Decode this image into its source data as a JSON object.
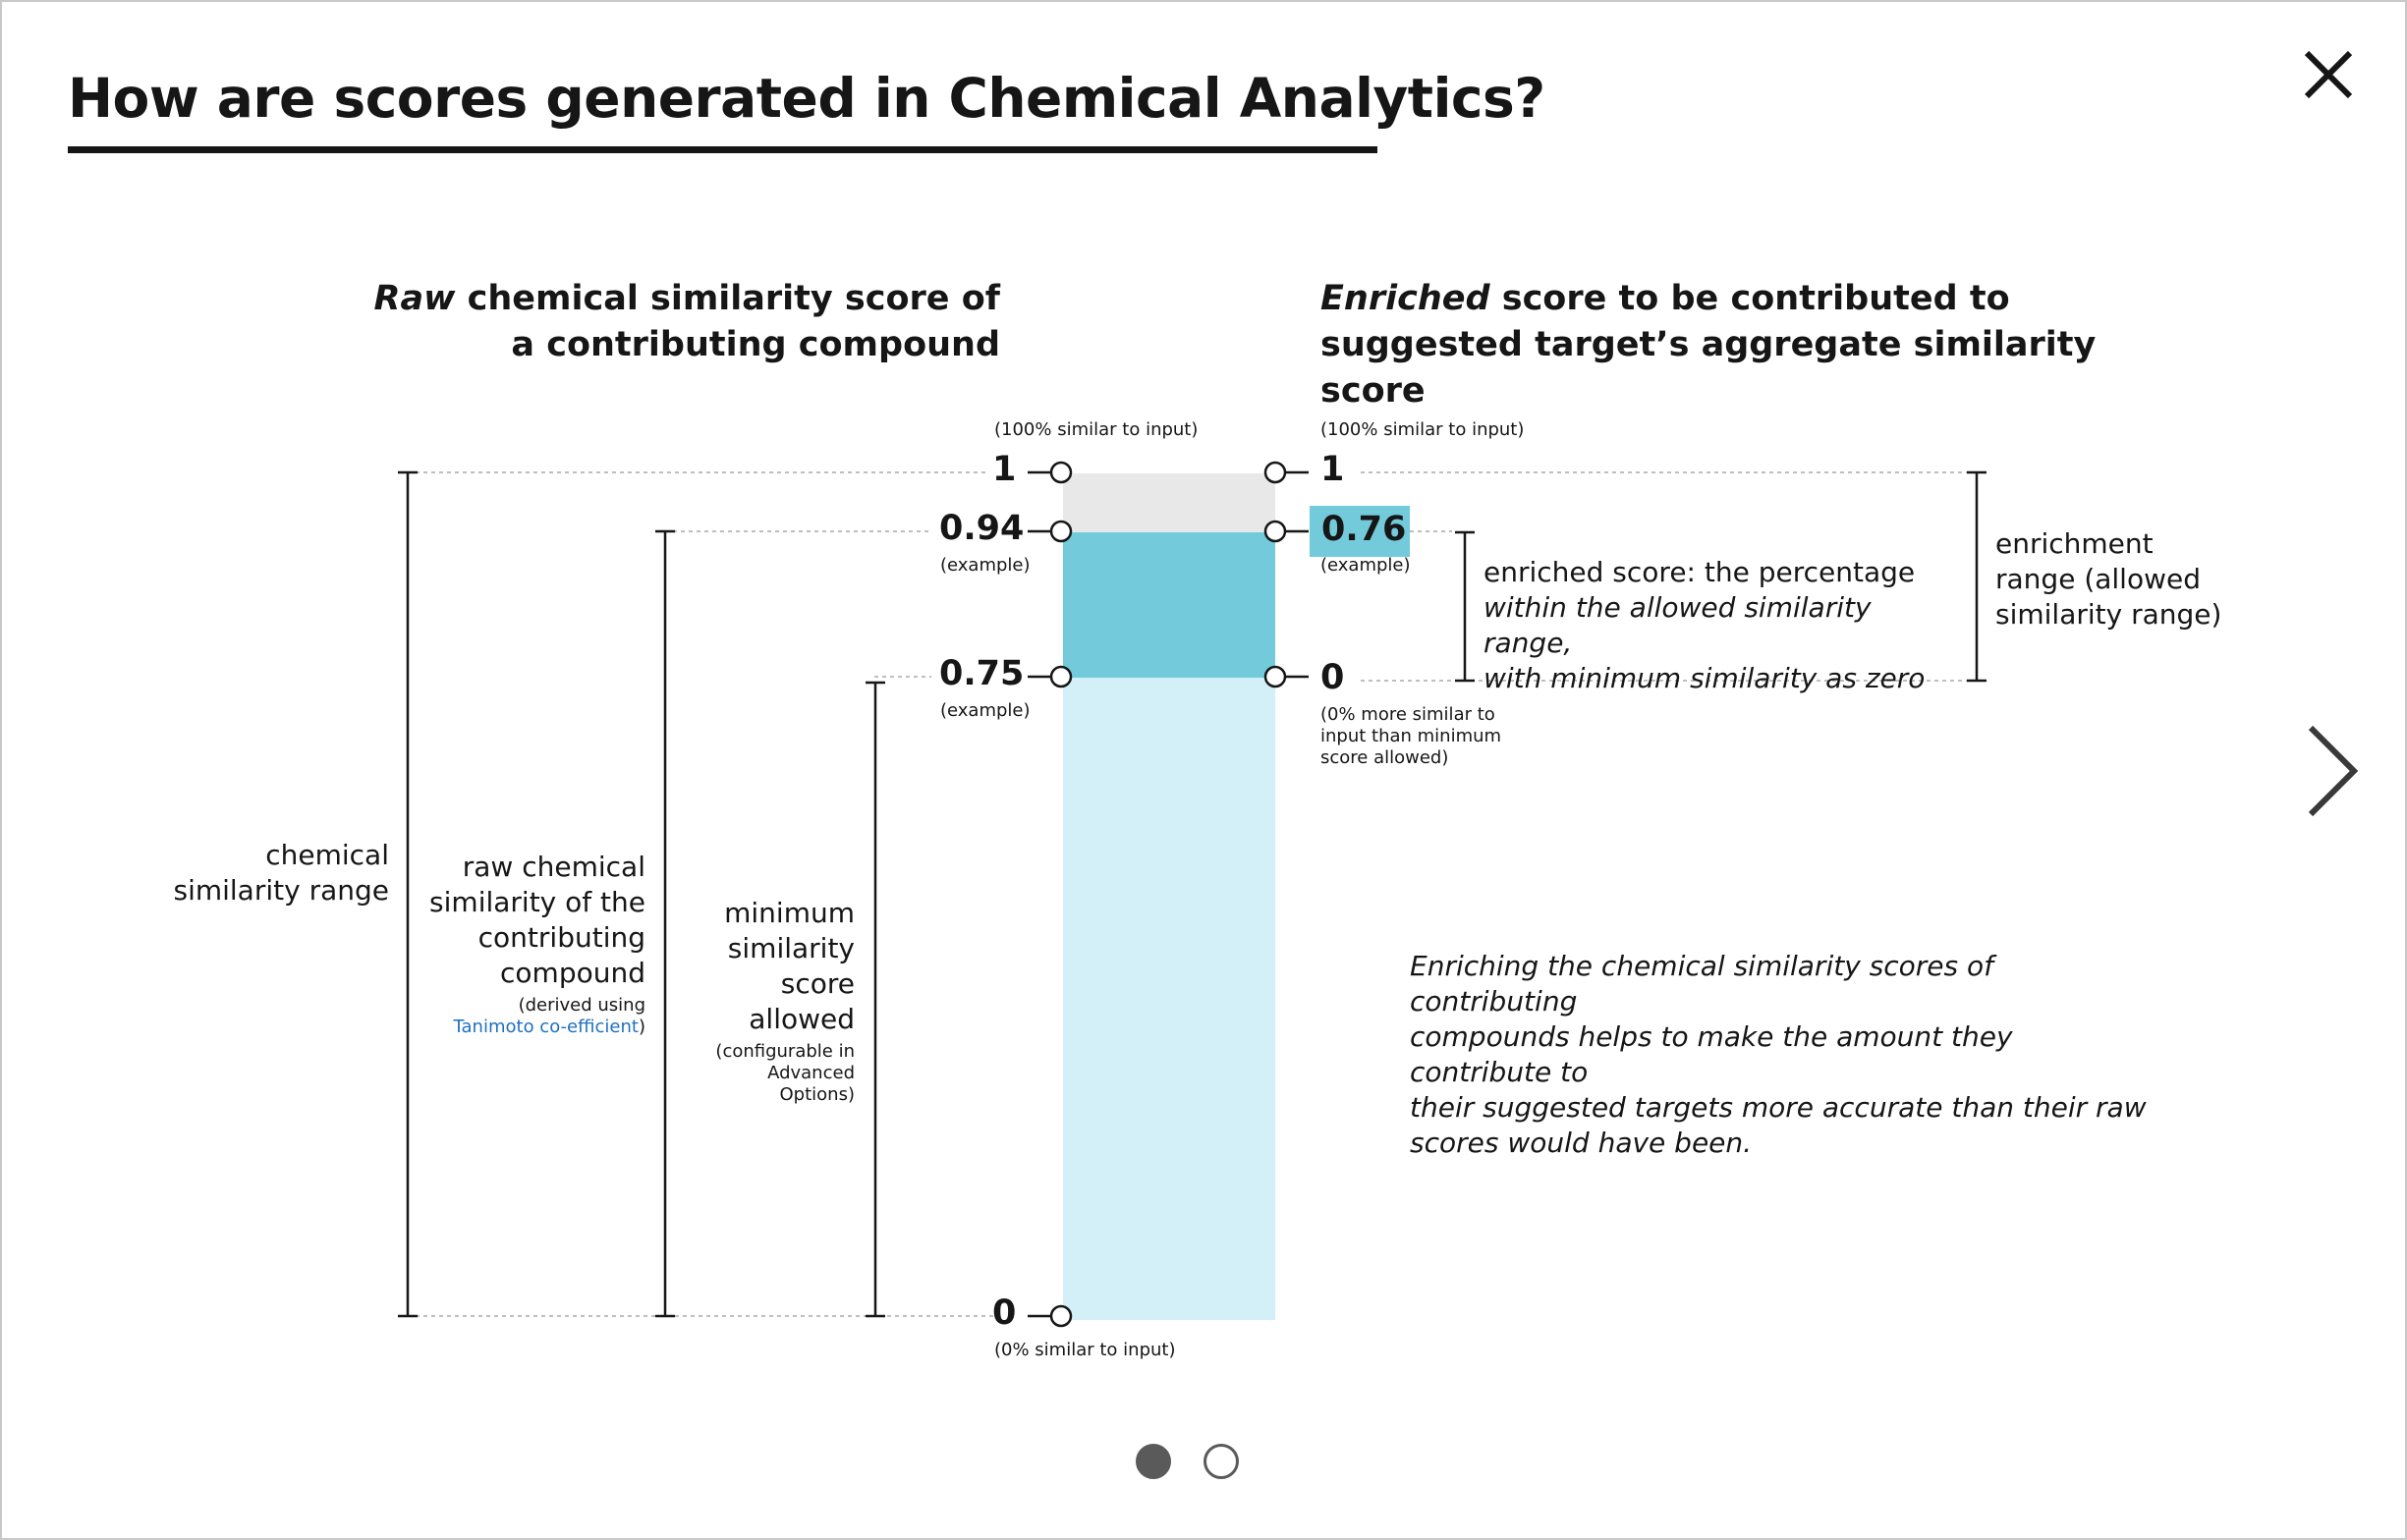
{
  "dialog": {
    "title": "How are scores generated in Chemical Analytics?",
    "close_label": "×",
    "next_icon": "chevron-right-icon"
  },
  "diagram": {
    "left_heading": {
      "emph": "Raw",
      "rest": " chemical similarity score of a contributing compound"
    },
    "right_heading": {
      "emph": "Enriched",
      "rest": " score to be contributed to suggested target’s aggregate similarity score"
    },
    "left_axis": {
      "top_note": "(100% similar to input)",
      "bottom_note": "(0% similar to input)",
      "ticks": [
        {
          "value": "1",
          "note": ""
        },
        {
          "value": "0.94",
          "note": "(example)"
        },
        {
          "value": "0.75",
          "note": "(example)"
        },
        {
          "value": "0",
          "note": ""
        }
      ]
    },
    "right_axis": {
      "top_note": "(100% similar to input)",
      "ticks": [
        {
          "value": "1",
          "note": ""
        },
        {
          "value": "0.76",
          "note": "(example)"
        },
        {
          "value": "0",
          "note": "(0% more similar to input than minimum score allowed)"
        }
      ],
      "zero_note_lines": [
        "(0% more similar to",
        "input than minimum",
        "score allowed)"
      ]
    },
    "brackets": {
      "chemical_similarity_range": [
        "chemical",
        "similarity range"
      ],
      "raw_chemical_similarity": [
        "raw chemical",
        "similarity of the",
        "contributing",
        "compound"
      ],
      "raw_note": [
        "(derived using",
        "Tanimoto co-efficient",
        ")"
      ],
      "minimum_similarity": [
        "minimum",
        "similarity",
        "score",
        "allowed"
      ],
      "minimum_note": [
        "(configurable in",
        "Advanced",
        "Options)"
      ],
      "enriched_score": [
        "enriched score: the percentage",
        "within the allowed similarity range,",
        "with minimum similarity as zero"
      ],
      "enrichment_range": [
        "enrichment",
        "range (allowed",
        "similarity range)"
      ]
    },
    "explanation_lines": [
      "Enriching the chemical similarity scores of contributing",
      "compounds helps to make the amount they contribute to",
      "their suggested targets more accurate than their raw",
      "scores would have been."
    ],
    "colors": {
      "top_band": "#e8e8e8",
      "enriched_band": "#72cadb",
      "lower_band": "#d3eff7",
      "link": "#1f70c1"
    }
  },
  "pagination": {
    "pages": 2,
    "current": 1
  }
}
